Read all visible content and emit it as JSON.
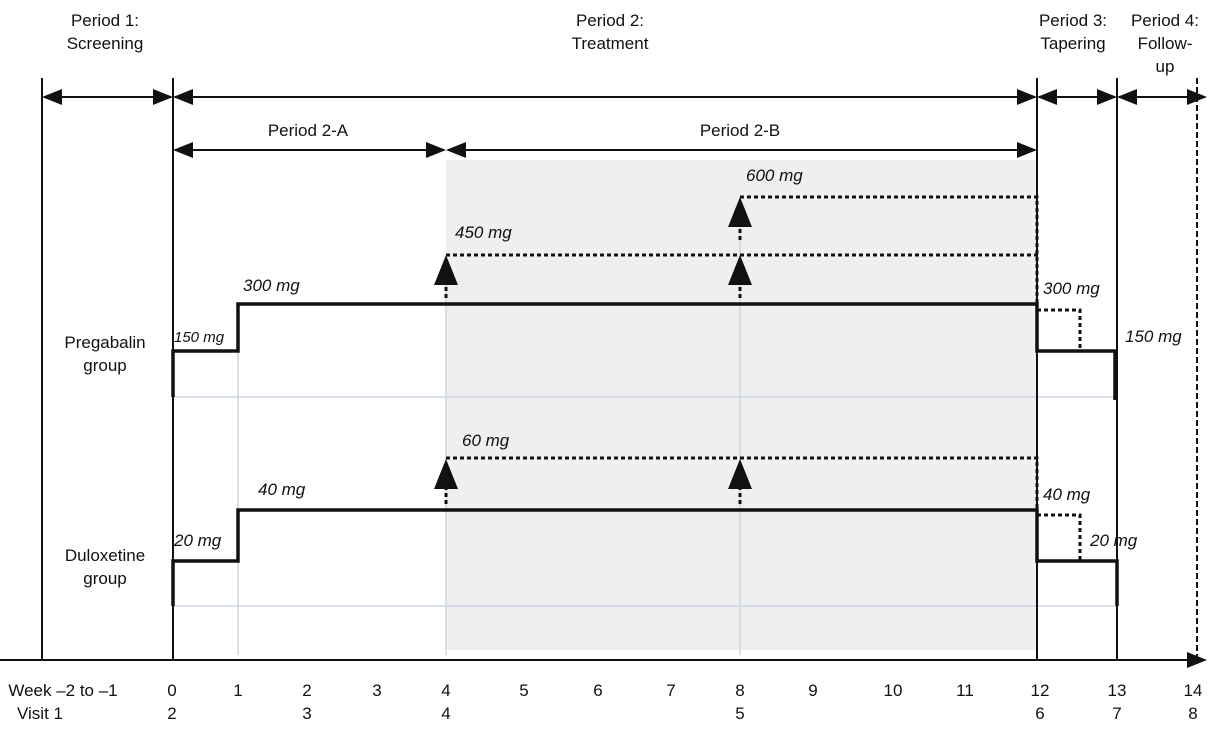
{
  "periods": [
    {
      "lines": [
        "Period 1:",
        "Screening"
      ]
    },
    {
      "lines": [
        "Period 2:",
        "Treatment"
      ]
    },
    {
      "lines": [
        "Period 3:",
        "Tapering"
      ]
    },
    {
      "lines": [
        "Period 4:",
        "Follow-",
        "up"
      ]
    }
  ],
  "subperiods": [
    "Period 2-A",
    "Period 2-B"
  ],
  "groups": [
    {
      "lines": [
        "Pregabalin",
        "group"
      ],
      "doses": [
        "150 mg",
        "300 mg",
        "450 mg",
        "600 mg",
        "300 mg",
        "150 mg"
      ]
    },
    {
      "lines": [
        "Duloxetine",
        "group"
      ],
      "doses": [
        "20 mg",
        "40 mg",
        "60 mg",
        "40 mg",
        "20 mg"
      ]
    }
  ],
  "week_axis": {
    "label": "Week –2 to –1",
    "weeks": [
      "0",
      "1",
      "2",
      "3",
      "4",
      "5",
      "6",
      "7",
      "8",
      "9",
      "10",
      "11",
      "12",
      "13",
      "14"
    ]
  },
  "visit_axis": {
    "label": "Visit 1",
    "visits": [
      "2",
      "3",
      "4",
      "5",
      "6",
      "7",
      "8"
    ]
  }
}
